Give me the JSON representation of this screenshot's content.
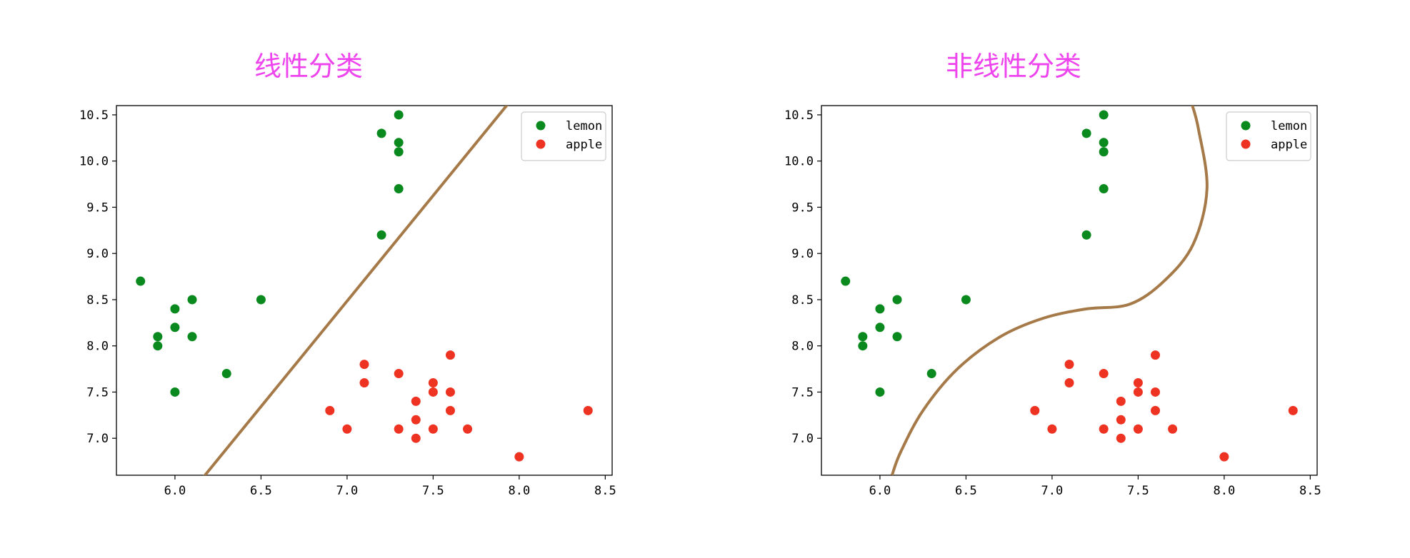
{
  "chart_data": [
    {
      "type": "scatter",
      "title": "线性分类",
      "xlabel": "",
      "ylabel": "",
      "xlim": [
        5.66,
        8.54
      ],
      "ylim": [
        6.6,
        10.6
      ],
      "xticks": [
        "6.0",
        "6.5",
        "7.0",
        "7.5",
        "8.0",
        "8.5"
      ],
      "yticks": [
        "7.0",
        "7.5",
        "8.0",
        "8.5",
        "9.0",
        "9.5",
        "10.0",
        "10.5"
      ],
      "legend_position": "top-right",
      "series": [
        {
          "name": "lemon",
          "color": "#0a8a1e",
          "points": [
            [
              5.8,
              8.7
            ],
            [
              5.9,
              8.1
            ],
            [
              5.9,
              8.0
            ],
            [
              6.0,
              8.4
            ],
            [
              6.0,
              8.2
            ],
            [
              6.0,
              7.5
            ],
            [
              6.1,
              8.5
            ],
            [
              6.1,
              8.1
            ],
            [
              6.3,
              7.7
            ],
            [
              6.5,
              8.5
            ],
            [
              7.2,
              10.3
            ],
            [
              7.2,
              9.2
            ],
            [
              7.3,
              10.5
            ],
            [
              7.3,
              10.2
            ],
            [
              7.3,
              10.1
            ],
            [
              7.3,
              9.7
            ]
          ]
        },
        {
          "name": "apple",
          "color": "#ee3322",
          "points": [
            [
              6.9,
              7.3
            ],
            [
              7.0,
              7.1
            ],
            [
              7.1,
              7.8
            ],
            [
              7.1,
              7.6
            ],
            [
              7.3,
              7.7
            ],
            [
              7.3,
              7.1
            ],
            [
              7.4,
              7.4
            ],
            [
              7.4,
              7.2
            ],
            [
              7.4,
              7.0
            ],
            [
              7.5,
              7.6
            ],
            [
              7.5,
              7.5
            ],
            [
              7.5,
              7.1
            ],
            [
              7.6,
              7.9
            ],
            [
              7.6,
              7.5
            ],
            [
              7.6,
              7.3
            ],
            [
              7.7,
              7.1
            ],
            [
              8.0,
              6.8
            ],
            [
              8.4,
              7.3
            ]
          ]
        }
      ],
      "boundary": {
        "kind": "line",
        "color": "#a57a48",
        "points": [
          [
            6.17,
            6.59
          ],
          [
            7.94,
            10.63
          ]
        ]
      }
    },
    {
      "type": "scatter",
      "title": "非线性分类",
      "xlabel": "",
      "ylabel": "",
      "xlim": [
        5.66,
        8.54
      ],
      "ylim": [
        6.6,
        10.6
      ],
      "xticks": [
        "6.0",
        "6.5",
        "7.0",
        "7.5",
        "8.0",
        "8.5"
      ],
      "yticks": [
        "7.0",
        "7.5",
        "8.0",
        "8.5",
        "9.0",
        "9.5",
        "10.0",
        "10.5"
      ],
      "legend_position": "top-right",
      "series": [
        {
          "name": "lemon",
          "color": "#0a8a1e",
          "points": [
            [
              5.8,
              8.7
            ],
            [
              5.9,
              8.1
            ],
            [
              5.9,
              8.0
            ],
            [
              6.0,
              8.4
            ],
            [
              6.0,
              8.2
            ],
            [
              6.0,
              7.5
            ],
            [
              6.1,
              8.5
            ],
            [
              6.1,
              8.1
            ],
            [
              6.3,
              7.7
            ],
            [
              6.5,
              8.5
            ],
            [
              7.2,
              10.3
            ],
            [
              7.2,
              9.2
            ],
            [
              7.3,
              10.5
            ],
            [
              7.3,
              10.2
            ],
            [
              7.3,
              10.1
            ],
            [
              7.3,
              9.7
            ]
          ]
        },
        {
          "name": "apple",
          "color": "#ee3322",
          "points": [
            [
              6.9,
              7.3
            ],
            [
              7.0,
              7.1
            ],
            [
              7.1,
              7.8
            ],
            [
              7.1,
              7.6
            ],
            [
              7.3,
              7.7
            ],
            [
              7.3,
              7.1
            ],
            [
              7.4,
              7.4
            ],
            [
              7.4,
              7.2
            ],
            [
              7.4,
              7.0
            ],
            [
              7.5,
              7.6
            ],
            [
              7.5,
              7.5
            ],
            [
              7.5,
              7.1
            ],
            [
              7.6,
              7.9
            ],
            [
              7.6,
              7.5
            ],
            [
              7.6,
              7.3
            ],
            [
              7.7,
              7.1
            ],
            [
              8.0,
              6.8
            ],
            [
              8.4,
              7.3
            ]
          ]
        }
      ],
      "boundary": {
        "kind": "curve",
        "color": "#a57a48",
        "points": [
          [
            6.07,
            6.6
          ],
          [
            6.12,
            6.85
          ],
          [
            6.25,
            7.3
          ],
          [
            6.45,
            7.75
          ],
          [
            6.7,
            8.1
          ],
          [
            6.95,
            8.3
          ],
          [
            7.2,
            8.4
          ],
          [
            7.45,
            8.45
          ],
          [
            7.65,
            8.7
          ],
          [
            7.82,
            9.1
          ],
          [
            7.9,
            9.7
          ],
          [
            7.85,
            10.35
          ],
          [
            7.81,
            10.63
          ]
        ]
      }
    }
  ]
}
